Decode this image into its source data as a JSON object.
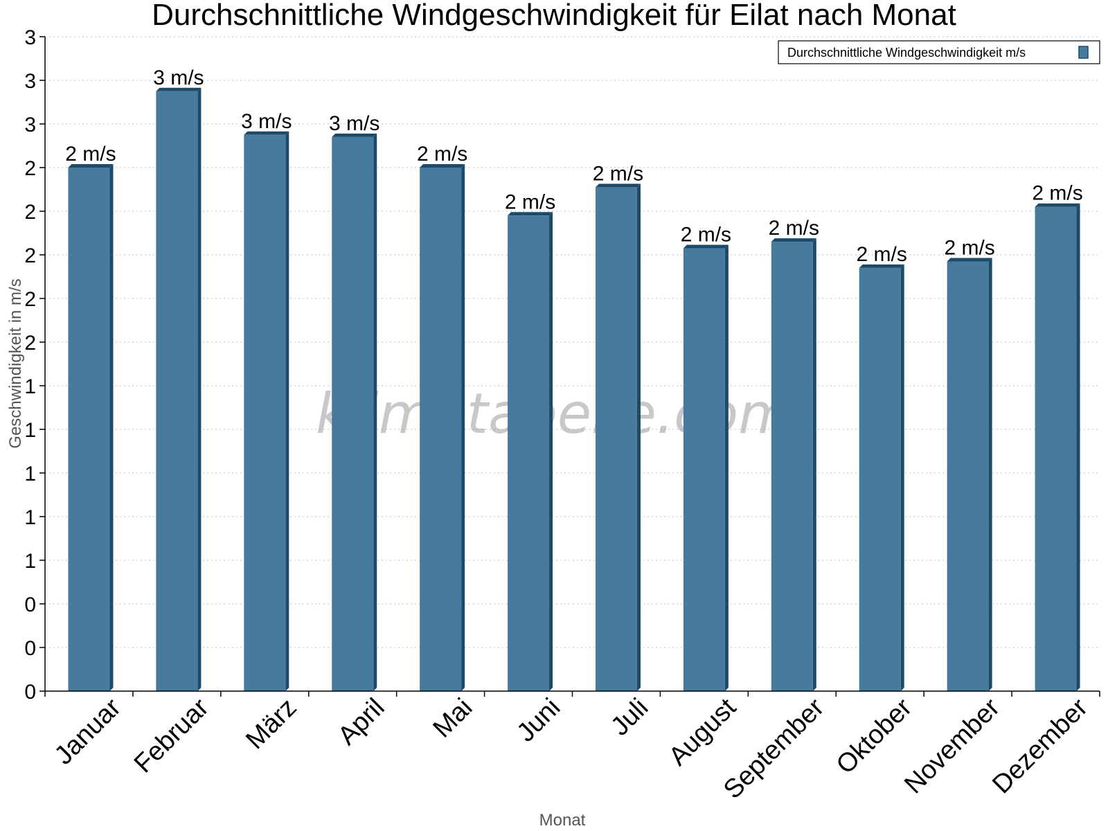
{
  "chart_data": {
    "type": "bar",
    "title": "Durchschnittliche Windgeschwindigkeit für Eilat nach Monat",
    "xlabel": "Monat",
    "ylabel": "Geschwindigkeit in m/s",
    "categories": [
      "Januar",
      "Februar",
      "März",
      "April",
      "Mai",
      "Juni",
      "Juli",
      "August",
      "September",
      "Oktober",
      "November",
      "Dezember"
    ],
    "series": [
      {
        "name": "Durchschnittliche Windgeschwindigkeit m/s",
        "values": [
          2.4,
          2.75,
          2.55,
          2.54,
          2.4,
          2.18,
          2.31,
          2.03,
          2.06,
          1.94,
          1.97,
          2.22
        ],
        "labels": [
          "2 m/s",
          "3 m/s",
          "3 m/s",
          "3 m/s",
          "2 m/s",
          "2 m/s",
          "2 m/s",
          "2 m/s",
          "2 m/s",
          "2 m/s",
          "2 m/s",
          "2 m/s"
        ],
        "color": "#477b9e"
      }
    ],
    "ylim": [
      0,
      3
    ],
    "yticks": [
      0,
      0.2,
      0.4,
      0.6,
      0.8,
      1.0,
      1.2,
      1.4,
      1.6,
      1.8,
      2.0,
      2.2,
      2.4,
      2.6,
      2.8,
      3.0
    ],
    "ytick_labels": [
      "0",
      "0",
      "0",
      "1",
      "1",
      "1",
      "1",
      "1",
      "2",
      "2",
      "2",
      "2",
      "2",
      "3",
      "3",
      "3"
    ],
    "grid": true,
    "legend_position": "top-right",
    "watermark": "klimatabelle.com"
  }
}
